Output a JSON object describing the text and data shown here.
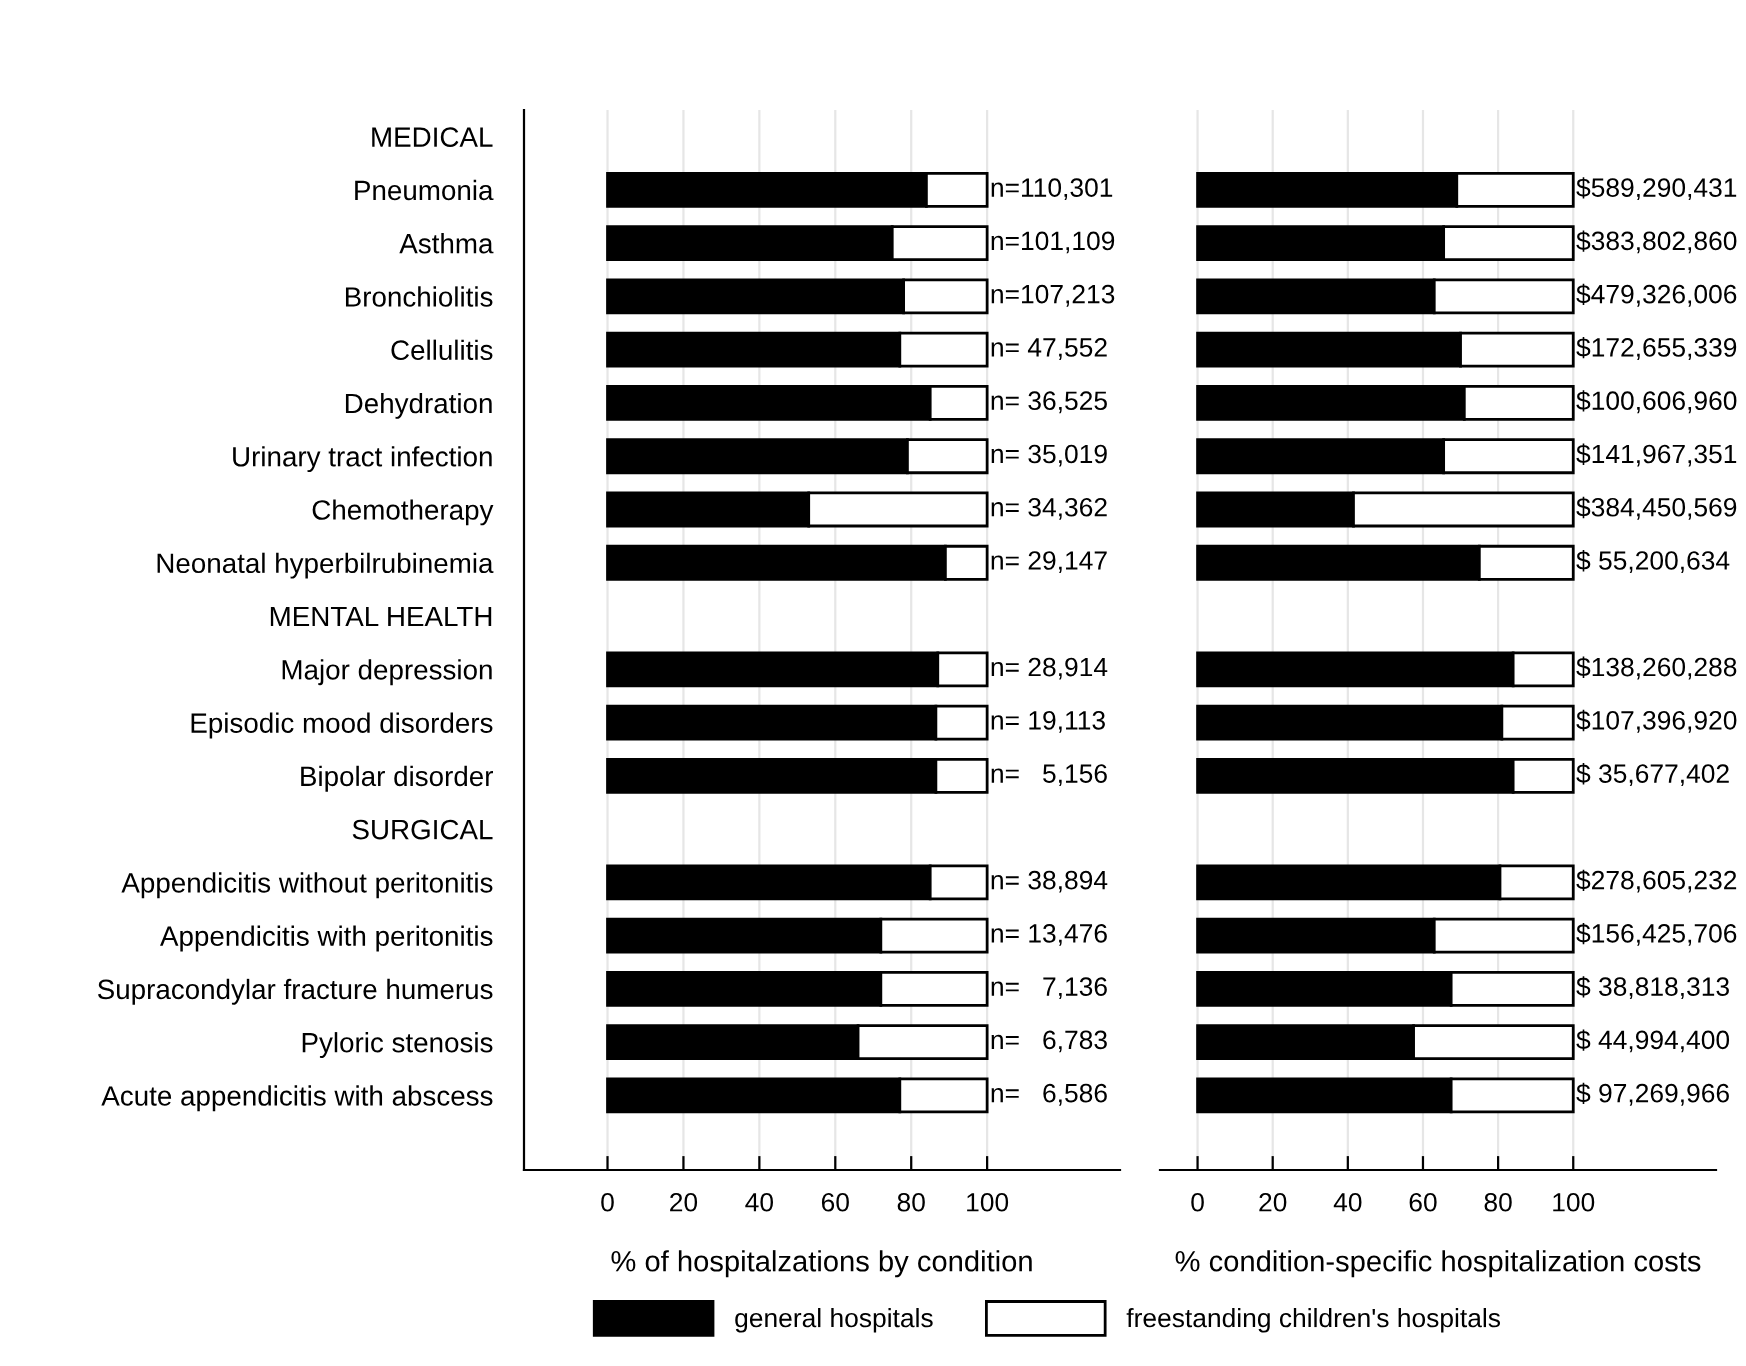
{
  "chart_data": [
    {
      "type": "bar",
      "orientation": "horizontal",
      "stacked": true,
      "xlabel": "% of hospitalzations by condition",
      "categories": [
        "MEDICAL",
        "Pneumonia",
        "Asthma",
        "Bronchiolitis",
        "Cellulitis",
        "Dehydration",
        "Urinary tract infection",
        "Chemotherapy",
        "Neonatal hyperbilrubinemia",
        "MENTAL HEALTH",
        "Major depression",
        "Episodic mood disorders",
        "Bipolar disorder",
        "SURGICAL",
        "Appendicitis without peritonitis",
        "Appendicitis with peritonitis",
        "Supracondylar fracture humerus",
        "Pyloric stenosis",
        "Acute appendicitis with abscess"
      ],
      "series": [
        {
          "name": "general hospitals",
          "color": "#000000",
          "values": [
            null,
            84,
            75,
            78,
            77,
            85,
            79,
            53,
            89,
            null,
            87,
            86.5,
            86.5,
            null,
            85,
            72,
            72,
            66,
            77
          ]
        },
        {
          "name": "freestanding children's hospitals",
          "color": "#ffffff",
          "values": [
            null,
            16,
            25,
            22,
            23,
            15,
            21,
            47,
            11,
            null,
            13,
            13.5,
            13.5,
            null,
            15,
            28,
            28,
            34,
            23
          ]
        }
      ],
      "xlim": [
        -22,
        135
      ],
      "xticks": [
        0,
        20,
        40,
        60,
        80,
        100
      ],
      "grid": "x",
      "legend": "bottom",
      "annotations": [
        "n=110,301",
        "n=101,109",
        "n=107,213",
        "n= 47,552",
        "n= 36,525",
        "n= 35,019",
        "n= 34,362",
        "n= 29,147",
        "n= 28,914",
        "n= 19,113",
        "n=   5,156",
        "n= 38,894",
        "n= 13,476",
        "n=   7,136",
        "n=   6,783",
        "n=   6,586"
      ]
    },
    {
      "type": "bar",
      "orientation": "horizontal",
      "stacked": true,
      "xlabel": "% condition-specific hospitalization costs",
      "categories": [
        null,
        null,
        null,
        null,
        null,
        null,
        null,
        null,
        null,
        null,
        null,
        null,
        null,
        null,
        null,
        null,
        null,
        null,
        null
      ],
      "series": [
        {
          "color": "#000000",
          "values": [
            null,
            69,
            65.5,
            63,
            70,
            71,
            65.5,
            41.5,
            75,
            null,
            84,
            81,
            84,
            null,
            80.5,
            63,
            67.5,
            57.5,
            67.5
          ]
        },
        {
          "color": "#ffffff",
          "values": [
            null,
            31,
            34.5,
            37,
            30,
            29,
            34.5,
            58.5,
            25,
            null,
            16,
            19,
            16,
            null,
            19.5,
            37,
            32.5,
            42.5,
            32.5
          ]
        }
      ],
      "xlim": [
        -10,
        138
      ],
      "xticks": [
        0,
        20,
        40,
        60,
        80,
        100
      ],
      "grid": "x",
      "annotations": [
        "$589,290,431",
        "$383,802,860",
        "$479,326,006",
        "$172,655,339",
        "$100,606,960",
        "$141,967,351",
        "$384,450,569",
        "$ 55,200,634",
        "$138,260,288",
        "$107,396,920",
        "$ 35,677,402",
        "$278,605,232",
        "$156,425,706",
        "$ 38,818,313",
        "$ 44,994,400",
        "$ 97,269,966"
      ]
    }
  ]
}
